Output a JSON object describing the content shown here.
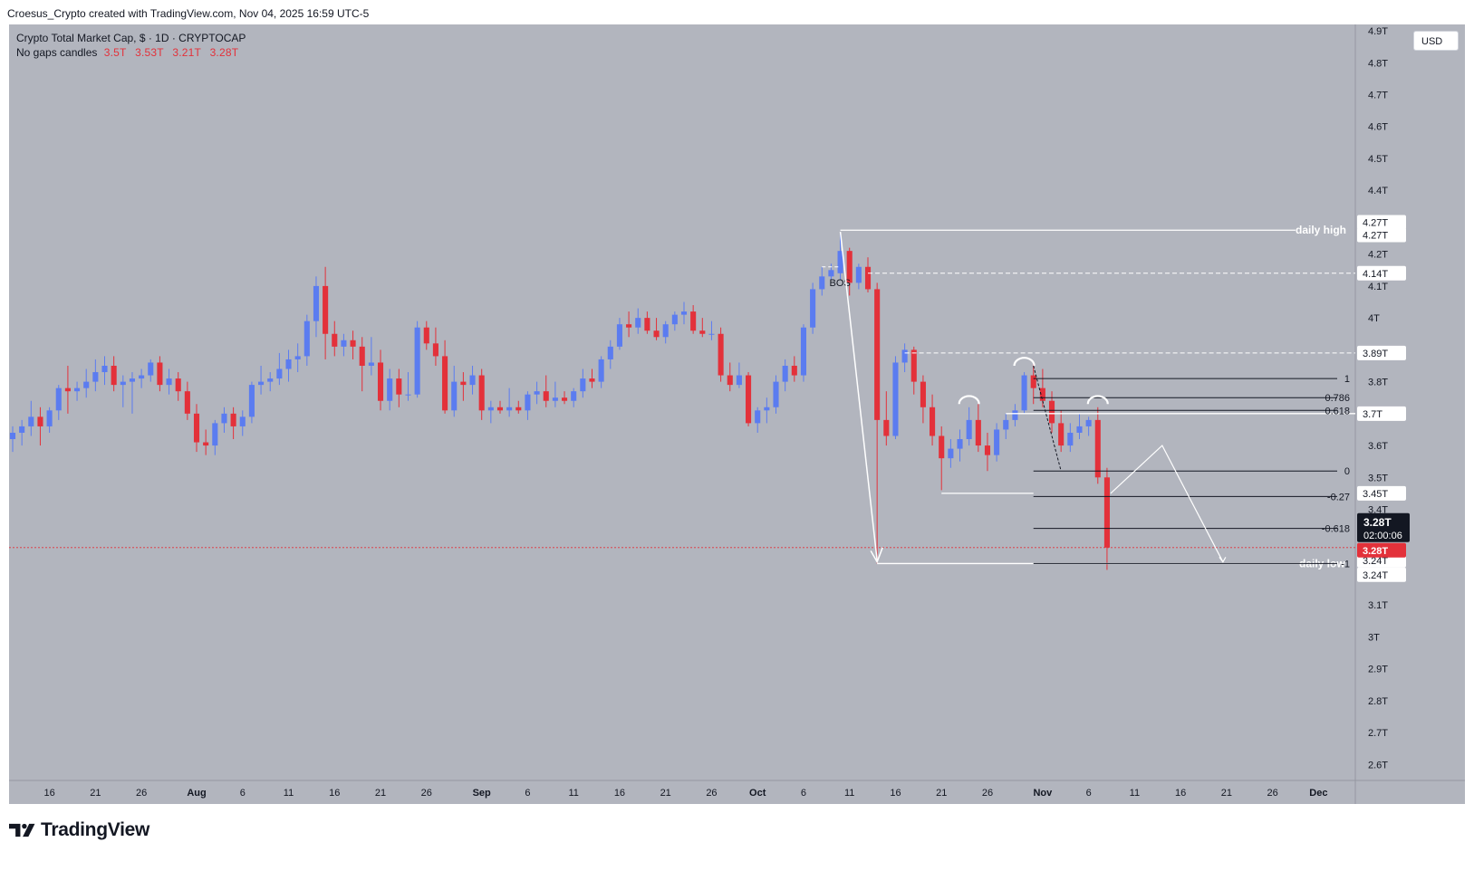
{
  "header": {
    "attribution": "Croesus_Crypto created with TradingView.com, Nov 04, 2025 16:59 UTC-5"
  },
  "chart": {
    "title": "Crypto Total Market Cap, $ · 1D · CRYPTOCAP",
    "subtitle_label": "No gaps candles",
    "ohlc_values": [
      "3.5T",
      "3.53T",
      "3.21T",
      "3.28T"
    ],
    "currency_button": "USD",
    "current_price_label": "3.28T",
    "countdown_label": "02:00:06",
    "price_line_label": "3.28T"
  },
  "footer": {
    "brand": "TradingView"
  },
  "colors": {
    "background": "#b2b5be",
    "up_candle": "#5b7cf0",
    "down_candle": "#e3313a",
    "wick": "#3a3e4c",
    "annotation_white": "#ffffff",
    "fib_line": "#131722"
  },
  "chart_data": {
    "type": "candlestick",
    "title": "Crypto Total Market Cap, $ · 1D · CRYPTOCAP",
    "y_unit": "T USD",
    "ylim": [
      2.55,
      4.92
    ],
    "y_ticks": [
      {
        "value": 4.9,
        "label": "4.9T"
      },
      {
        "value": 4.8,
        "label": "4.8T"
      },
      {
        "value": 4.7,
        "label": "4.7T"
      },
      {
        "value": 4.6,
        "label": "4.6T"
      },
      {
        "value": 4.5,
        "label": "4.5T"
      },
      {
        "value": 4.4,
        "label": "4.4T"
      },
      {
        "value": 4.2,
        "label": "4.2T"
      },
      {
        "value": 4.1,
        "label": "4.1T"
      },
      {
        "value": 4.0,
        "label": "4T"
      },
      {
        "value": 3.8,
        "label": "3.8T"
      },
      {
        "value": 3.6,
        "label": "3.6T"
      },
      {
        "value": 3.5,
        "label": "3.5T"
      },
      {
        "value": 3.4,
        "label": "3.4T"
      },
      {
        "value": 3.1,
        "label": "3.1T"
      },
      {
        "value": 3.0,
        "label": "3T"
      },
      {
        "value": 2.9,
        "label": "2.9T"
      },
      {
        "value": 2.8,
        "label": "2.8T"
      },
      {
        "value": 2.7,
        "label": "2.7T"
      },
      {
        "value": 2.6,
        "label": "2.6T"
      }
    ],
    "price_tags": [
      {
        "value": 4.3,
        "label": "4.27T",
        "style": "white"
      },
      {
        "value": 4.26,
        "label": "4.27T",
        "style": "white"
      },
      {
        "value": 4.14,
        "label": "4.14T",
        "style": "white"
      },
      {
        "value": 3.89,
        "label": "3.89T",
        "style": "white"
      },
      {
        "value": 3.7,
        "label": "3.7T",
        "style": "white"
      },
      {
        "value": 3.45,
        "label": "3.45T",
        "style": "white"
      },
      {
        "value": 3.24,
        "label": "3.24T",
        "style": "white"
      },
      {
        "value": 3.195,
        "label": "3.24T",
        "style": "white"
      }
    ],
    "x_ticks": [
      {
        "date": "2025-07-16",
        "label": "16"
      },
      {
        "date": "2025-07-21",
        "label": "21"
      },
      {
        "date": "2025-07-26",
        "label": "26"
      },
      {
        "date": "2025-08-01",
        "label": "Aug",
        "bold": true
      },
      {
        "date": "2025-08-06",
        "label": "6"
      },
      {
        "date": "2025-08-11",
        "label": "11"
      },
      {
        "date": "2025-08-16",
        "label": "16"
      },
      {
        "date": "2025-08-21",
        "label": "21"
      },
      {
        "date": "2025-08-26",
        "label": "26"
      },
      {
        "date": "2025-09-01",
        "label": "Sep",
        "bold": true
      },
      {
        "date": "2025-09-06",
        "label": "6"
      },
      {
        "date": "2025-09-11",
        "label": "11"
      },
      {
        "date": "2025-09-16",
        "label": "16"
      },
      {
        "date": "2025-09-21",
        "label": "21"
      },
      {
        "date": "2025-09-26",
        "label": "26"
      },
      {
        "date": "2025-10-01",
        "label": "Oct",
        "bold": true
      },
      {
        "date": "2025-10-06",
        "label": "6"
      },
      {
        "date": "2025-10-11",
        "label": "11"
      },
      {
        "date": "2025-10-16",
        "label": "16"
      },
      {
        "date": "2025-10-21",
        "label": "21"
      },
      {
        "date": "2025-10-26",
        "label": "26"
      },
      {
        "date": "2025-11-01",
        "label": "Nov",
        "bold": true
      },
      {
        "date": "2025-11-06",
        "label": "6"
      },
      {
        "date": "2025-11-11",
        "label": "11"
      },
      {
        "date": "2025-11-16",
        "label": "16"
      },
      {
        "date": "2025-11-21",
        "label": "21"
      },
      {
        "date": "2025-11-26",
        "label": "26"
      },
      {
        "date": "2025-12-01",
        "label": "Dec",
        "bold": true
      }
    ],
    "x_range": [
      "2025-07-12",
      "2025-12-05"
    ],
    "candles": [
      {
        "d": "2025-07-12",
        "o": 3.62,
        "h": 3.66,
        "l": 3.58,
        "c": 3.64
      },
      {
        "d": "2025-07-13",
        "o": 3.64,
        "h": 3.68,
        "l": 3.6,
        "c": 3.66
      },
      {
        "d": "2025-07-14",
        "o": 3.66,
        "h": 3.74,
        "l": 3.63,
        "c": 3.69
      },
      {
        "d": "2025-07-15",
        "o": 3.69,
        "h": 3.72,
        "l": 3.6,
        "c": 3.66
      },
      {
        "d": "2025-07-16",
        "o": 3.66,
        "h": 3.72,
        "l": 3.64,
        "c": 3.71
      },
      {
        "d": "2025-07-17",
        "o": 3.71,
        "h": 3.79,
        "l": 3.68,
        "c": 3.78
      },
      {
        "d": "2025-07-18",
        "o": 3.78,
        "h": 3.85,
        "l": 3.7,
        "c": 3.77
      },
      {
        "d": "2025-07-19",
        "o": 3.77,
        "h": 3.8,
        "l": 3.74,
        "c": 3.78
      },
      {
        "d": "2025-07-20",
        "o": 3.78,
        "h": 3.84,
        "l": 3.75,
        "c": 3.8
      },
      {
        "d": "2025-07-21",
        "o": 3.8,
        "h": 3.87,
        "l": 3.77,
        "c": 3.83
      },
      {
        "d": "2025-07-22",
        "o": 3.83,
        "h": 3.88,
        "l": 3.79,
        "c": 3.85
      },
      {
        "d": "2025-07-23",
        "o": 3.85,
        "h": 3.88,
        "l": 3.77,
        "c": 3.79
      },
      {
        "d": "2025-07-24",
        "o": 3.79,
        "h": 3.82,
        "l": 3.72,
        "c": 3.8
      },
      {
        "d": "2025-07-25",
        "o": 3.8,
        "h": 3.83,
        "l": 3.7,
        "c": 3.81
      },
      {
        "d": "2025-07-26",
        "o": 3.81,
        "h": 3.84,
        "l": 3.78,
        "c": 3.82
      },
      {
        "d": "2025-07-27",
        "o": 3.82,
        "h": 3.87,
        "l": 3.8,
        "c": 3.86
      },
      {
        "d": "2025-07-28",
        "o": 3.86,
        "h": 3.88,
        "l": 3.77,
        "c": 3.79
      },
      {
        "d": "2025-07-29",
        "o": 3.79,
        "h": 3.84,
        "l": 3.76,
        "c": 3.81
      },
      {
        "d": "2025-07-30",
        "o": 3.81,
        "h": 3.83,
        "l": 3.74,
        "c": 3.77
      },
      {
        "d": "2025-07-31",
        "o": 3.77,
        "h": 3.8,
        "l": 3.68,
        "c": 3.7
      },
      {
        "d": "2025-08-01",
        "o": 3.7,
        "h": 3.73,
        "l": 3.58,
        "c": 3.61
      },
      {
        "d": "2025-08-02",
        "o": 3.61,
        "h": 3.65,
        "l": 3.57,
        "c": 3.6
      },
      {
        "d": "2025-08-03",
        "o": 3.6,
        "h": 3.68,
        "l": 3.57,
        "c": 3.67
      },
      {
        "d": "2025-08-04",
        "o": 3.67,
        "h": 3.72,
        "l": 3.64,
        "c": 3.7
      },
      {
        "d": "2025-08-05",
        "o": 3.7,
        "h": 3.72,
        "l": 3.62,
        "c": 3.66
      },
      {
        "d": "2025-08-06",
        "o": 3.66,
        "h": 3.71,
        "l": 3.63,
        "c": 3.69
      },
      {
        "d": "2025-08-07",
        "o": 3.69,
        "h": 3.8,
        "l": 3.67,
        "c": 3.79
      },
      {
        "d": "2025-08-08",
        "o": 3.79,
        "h": 3.85,
        "l": 3.76,
        "c": 3.8
      },
      {
        "d": "2025-08-09",
        "o": 3.8,
        "h": 3.83,
        "l": 3.77,
        "c": 3.81
      },
      {
        "d": "2025-08-10",
        "o": 3.81,
        "h": 3.89,
        "l": 3.79,
        "c": 3.84
      },
      {
        "d": "2025-08-11",
        "o": 3.84,
        "h": 3.9,
        "l": 3.8,
        "c": 3.87
      },
      {
        "d": "2025-08-12",
        "o": 3.87,
        "h": 3.92,
        "l": 3.83,
        "c": 3.88
      },
      {
        "d": "2025-08-13",
        "o": 3.88,
        "h": 4.01,
        "l": 3.85,
        "c": 3.99
      },
      {
        "d": "2025-08-14",
        "o": 3.99,
        "h": 4.13,
        "l": 3.94,
        "c": 4.1
      },
      {
        "d": "2025-08-15",
        "o": 4.1,
        "h": 4.16,
        "l": 3.87,
        "c": 3.95
      },
      {
        "d": "2025-08-16",
        "o": 3.95,
        "h": 3.99,
        "l": 3.88,
        "c": 3.91
      },
      {
        "d": "2025-08-17",
        "o": 3.91,
        "h": 3.95,
        "l": 3.88,
        "c": 3.93
      },
      {
        "d": "2025-08-18",
        "o": 3.93,
        "h": 3.96,
        "l": 3.87,
        "c": 3.91
      },
      {
        "d": "2025-08-19",
        "o": 3.91,
        "h": 3.94,
        "l": 3.77,
        "c": 3.85
      },
      {
        "d": "2025-08-20",
        "o": 3.85,
        "h": 3.94,
        "l": 3.82,
        "c": 3.86
      },
      {
        "d": "2025-08-21",
        "o": 3.86,
        "h": 3.9,
        "l": 3.71,
        "c": 3.74
      },
      {
        "d": "2025-08-22",
        "o": 3.74,
        "h": 3.84,
        "l": 3.71,
        "c": 3.81
      },
      {
        "d": "2025-08-23",
        "o": 3.81,
        "h": 3.84,
        "l": 3.72,
        "c": 3.76
      },
      {
        "d": "2025-08-24",
        "o": 3.76,
        "h": 3.83,
        "l": 3.74,
        "c": 3.76
      },
      {
        "d": "2025-08-25",
        "o": 3.76,
        "h": 3.99,
        "l": 3.75,
        "c": 3.97
      },
      {
        "d": "2025-08-26",
        "o": 3.97,
        "h": 3.99,
        "l": 3.9,
        "c": 3.92
      },
      {
        "d": "2025-08-27",
        "o": 3.92,
        "h": 3.97,
        "l": 3.85,
        "c": 3.88
      },
      {
        "d": "2025-08-28",
        "o": 3.88,
        "h": 3.93,
        "l": 3.7,
        "c": 3.71
      },
      {
        "d": "2025-08-29",
        "o": 3.71,
        "h": 3.85,
        "l": 3.69,
        "c": 3.8
      },
      {
        "d": "2025-08-30",
        "o": 3.8,
        "h": 3.83,
        "l": 3.74,
        "c": 3.79
      },
      {
        "d": "2025-08-31",
        "o": 3.79,
        "h": 3.85,
        "l": 3.76,
        "c": 3.82
      },
      {
        "d": "2025-09-01",
        "o": 3.82,
        "h": 3.84,
        "l": 3.68,
        "c": 3.71
      },
      {
        "d": "2025-09-02",
        "o": 3.71,
        "h": 3.74,
        "l": 3.67,
        "c": 3.72
      },
      {
        "d": "2025-09-03",
        "o": 3.72,
        "h": 3.74,
        "l": 3.7,
        "c": 3.71
      },
      {
        "d": "2025-09-04",
        "o": 3.71,
        "h": 3.78,
        "l": 3.69,
        "c": 3.72
      },
      {
        "d": "2025-09-05",
        "o": 3.72,
        "h": 3.74,
        "l": 3.7,
        "c": 3.71
      },
      {
        "d": "2025-09-06",
        "o": 3.71,
        "h": 3.77,
        "l": 3.68,
        "c": 3.76
      },
      {
        "d": "2025-09-07",
        "o": 3.76,
        "h": 3.8,
        "l": 3.73,
        "c": 3.77
      },
      {
        "d": "2025-09-08",
        "o": 3.77,
        "h": 3.82,
        "l": 3.72,
        "c": 3.74
      },
      {
        "d": "2025-09-09",
        "o": 3.74,
        "h": 3.8,
        "l": 3.72,
        "c": 3.75
      },
      {
        "d": "2025-09-10",
        "o": 3.75,
        "h": 3.77,
        "l": 3.73,
        "c": 3.74
      },
      {
        "d": "2025-09-11",
        "o": 3.74,
        "h": 3.78,
        "l": 3.72,
        "c": 3.77
      },
      {
        "d": "2025-09-12",
        "o": 3.77,
        "h": 3.84,
        "l": 3.75,
        "c": 3.81
      },
      {
        "d": "2025-09-13",
        "o": 3.81,
        "h": 3.84,
        "l": 3.78,
        "c": 3.8
      },
      {
        "d": "2025-09-14",
        "o": 3.8,
        "h": 3.88,
        "l": 3.78,
        "c": 3.87
      },
      {
        "d": "2025-09-15",
        "o": 3.87,
        "h": 3.93,
        "l": 3.84,
        "c": 3.91
      },
      {
        "d": "2025-09-16",
        "o": 3.91,
        "h": 4.0,
        "l": 3.9,
        "c": 3.98
      },
      {
        "d": "2025-09-17",
        "o": 3.98,
        "h": 4.02,
        "l": 3.94,
        "c": 3.97
      },
      {
        "d": "2025-09-18",
        "o": 3.97,
        "h": 4.03,
        "l": 3.95,
        "c": 4.0
      },
      {
        "d": "2025-09-19",
        "o": 4.0,
        "h": 4.02,
        "l": 3.95,
        "c": 3.96
      },
      {
        "d": "2025-09-20",
        "o": 3.96,
        "h": 4.0,
        "l": 3.93,
        "c": 3.94
      },
      {
        "d": "2025-09-21",
        "o": 3.94,
        "h": 3.99,
        "l": 3.92,
        "c": 3.98
      },
      {
        "d": "2025-09-22",
        "o": 3.98,
        "h": 4.02,
        "l": 3.96,
        "c": 4.01
      },
      {
        "d": "2025-09-23",
        "o": 4.01,
        "h": 4.05,
        "l": 3.98,
        "c": 4.02
      },
      {
        "d": "2025-09-24",
        "o": 4.02,
        "h": 4.04,
        "l": 3.95,
        "c": 3.96
      },
      {
        "d": "2025-09-25",
        "o": 3.96,
        "h": 4.0,
        "l": 3.94,
        "c": 3.95
      },
      {
        "d": "2025-09-26",
        "o": 3.95,
        "h": 3.99,
        "l": 3.93,
        "c": 3.95
      },
      {
        "d": "2025-09-27",
        "o": 3.95,
        "h": 3.97,
        "l": 3.8,
        "c": 3.82
      },
      {
        "d": "2025-09-28",
        "o": 3.82,
        "h": 3.86,
        "l": 3.77,
        "c": 3.79
      },
      {
        "d": "2025-09-29",
        "o": 3.79,
        "h": 3.86,
        "l": 3.78,
        "c": 3.82
      },
      {
        "d": "2025-09-30",
        "o": 3.82,
        "h": 3.83,
        "l": 3.66,
        "c": 3.67
      },
      {
        "d": "2025-10-01",
        "o": 3.67,
        "h": 3.72,
        "l": 3.64,
        "c": 3.71
      },
      {
        "d": "2025-10-02",
        "o": 3.71,
        "h": 3.75,
        "l": 3.67,
        "c": 3.72
      },
      {
        "d": "2025-10-03",
        "o": 3.72,
        "h": 3.82,
        "l": 3.7,
        "c": 3.8
      },
      {
        "d": "2025-10-04",
        "o": 3.8,
        "h": 3.87,
        "l": 3.77,
        "c": 3.85
      },
      {
        "d": "2025-10-05",
        "o": 3.85,
        "h": 3.88,
        "l": 3.8,
        "c": 3.82
      },
      {
        "d": "2025-10-06",
        "o": 3.82,
        "h": 3.98,
        "l": 3.8,
        "c": 3.97
      },
      {
        "d": "2025-10-07",
        "o": 3.97,
        "h": 4.11,
        "l": 3.95,
        "c": 4.09
      },
      {
        "d": "2025-10-08",
        "o": 4.09,
        "h": 4.16,
        "l": 4.07,
        "c": 4.13
      },
      {
        "d": "2025-10-09",
        "o": 4.13,
        "h": 4.17,
        "l": 4.12,
        "c": 4.15
      },
      {
        "d": "2025-10-10",
        "o": 4.14,
        "h": 4.27,
        "l": 4.12,
        "c": 4.21
      },
      {
        "d": "2025-10-11",
        "o": 4.21,
        "h": 4.22,
        "l": 4.07,
        "c": 4.11
      },
      {
        "d": "2025-10-12",
        "o": 4.11,
        "h": 4.17,
        "l": 4.09,
        "c": 4.16
      },
      {
        "d": "2025-10-13",
        "o": 4.16,
        "h": 4.19,
        "l": 4.08,
        "c": 4.09
      },
      {
        "d": "2025-10-14",
        "o": 4.09,
        "h": 4.11,
        "l": 3.23,
        "c": 3.68
      },
      {
        "d": "2025-10-15",
        "o": 3.68,
        "h": 3.77,
        "l": 3.6,
        "c": 3.63
      },
      {
        "d": "2025-10-16",
        "o": 3.63,
        "h": 3.88,
        "l": 3.62,
        "c": 3.86
      },
      {
        "d": "2025-10-17",
        "o": 3.86,
        "h": 3.92,
        "l": 3.83,
        "c": 3.9
      },
      {
        "d": "2025-10-18",
        "o": 3.9,
        "h": 3.91,
        "l": 3.76,
        "c": 3.8
      },
      {
        "d": "2025-10-19",
        "o": 3.8,
        "h": 3.82,
        "l": 3.67,
        "c": 3.72
      },
      {
        "d": "2025-10-20",
        "o": 3.72,
        "h": 3.76,
        "l": 3.6,
        "c": 3.63
      },
      {
        "d": "2025-10-21",
        "o": 3.63,
        "h": 3.66,
        "l": 3.46,
        "c": 3.56
      },
      {
        "d": "2025-10-22",
        "o": 3.56,
        "h": 3.62,
        "l": 3.53,
        "c": 3.59
      },
      {
        "d": "2025-10-23",
        "o": 3.59,
        "h": 3.65,
        "l": 3.55,
        "c": 3.62
      },
      {
        "d": "2025-10-24",
        "o": 3.62,
        "h": 3.72,
        "l": 3.6,
        "c": 3.68
      },
      {
        "d": "2025-10-25",
        "o": 3.68,
        "h": 3.73,
        "l": 3.58,
        "c": 3.6
      },
      {
        "d": "2025-10-26",
        "o": 3.6,
        "h": 3.64,
        "l": 3.52,
        "c": 3.57
      },
      {
        "d": "2025-10-27",
        "o": 3.57,
        "h": 3.67,
        "l": 3.55,
        "c": 3.65
      },
      {
        "d": "2025-10-28",
        "o": 3.65,
        "h": 3.7,
        "l": 3.62,
        "c": 3.68
      },
      {
        "d": "2025-10-29",
        "o": 3.68,
        "h": 3.73,
        "l": 3.66,
        "c": 3.71
      },
      {
        "d": "2025-10-30",
        "o": 3.71,
        "h": 3.83,
        "l": 3.7,
        "c": 3.82
      },
      {
        "d": "2025-10-31",
        "o": 3.82,
        "h": 3.86,
        "l": 3.73,
        "c": 3.78
      },
      {
        "d": "2025-11-01",
        "o": 3.78,
        "h": 3.84,
        "l": 3.72,
        "c": 3.74
      },
      {
        "d": "2025-11-02",
        "o": 3.74,
        "h": 3.77,
        "l": 3.64,
        "c": 3.67
      },
      {
        "d": "2025-11-03",
        "o": 3.67,
        "h": 3.71,
        "l": 3.58,
        "c": 3.6
      },
      {
        "d": "2025-11-04",
        "o": 3.6,
        "h": 3.67,
        "l": 3.58,
        "c": 3.64
      },
      {
        "d": "2025-11-05",
        "o": 3.64,
        "h": 3.7,
        "l": 3.62,
        "c": 3.66
      },
      {
        "d": "2025-11-06",
        "o": 3.66,
        "h": 3.69,
        "l": 3.63,
        "c": 3.68
      },
      {
        "d": "2025-11-07",
        "o": 3.68,
        "h": 3.72,
        "l": 3.48,
        "c": 3.5
      },
      {
        "d": "2025-11-08",
        "o": 3.5,
        "h": 3.53,
        "l": 3.21,
        "c": 3.28
      }
    ],
    "annotations": {
      "daily_high_label": "daily high",
      "daily_low_label": "daily low",
      "bos_label": "BOS",
      "fib_levels": [
        {
          "label": "1",
          "value": 3.81
        },
        {
          "label": "0.786",
          "value": 3.75
        },
        {
          "label": "0.618",
          "value": 3.71
        },
        {
          "label": "0",
          "value": 3.52
        },
        {
          "label": "-0.27",
          "value": 3.44
        },
        {
          "label": "-0.618",
          "value": 3.34
        },
        {
          "label": "-1",
          "value": 3.23
        }
      ]
    }
  }
}
